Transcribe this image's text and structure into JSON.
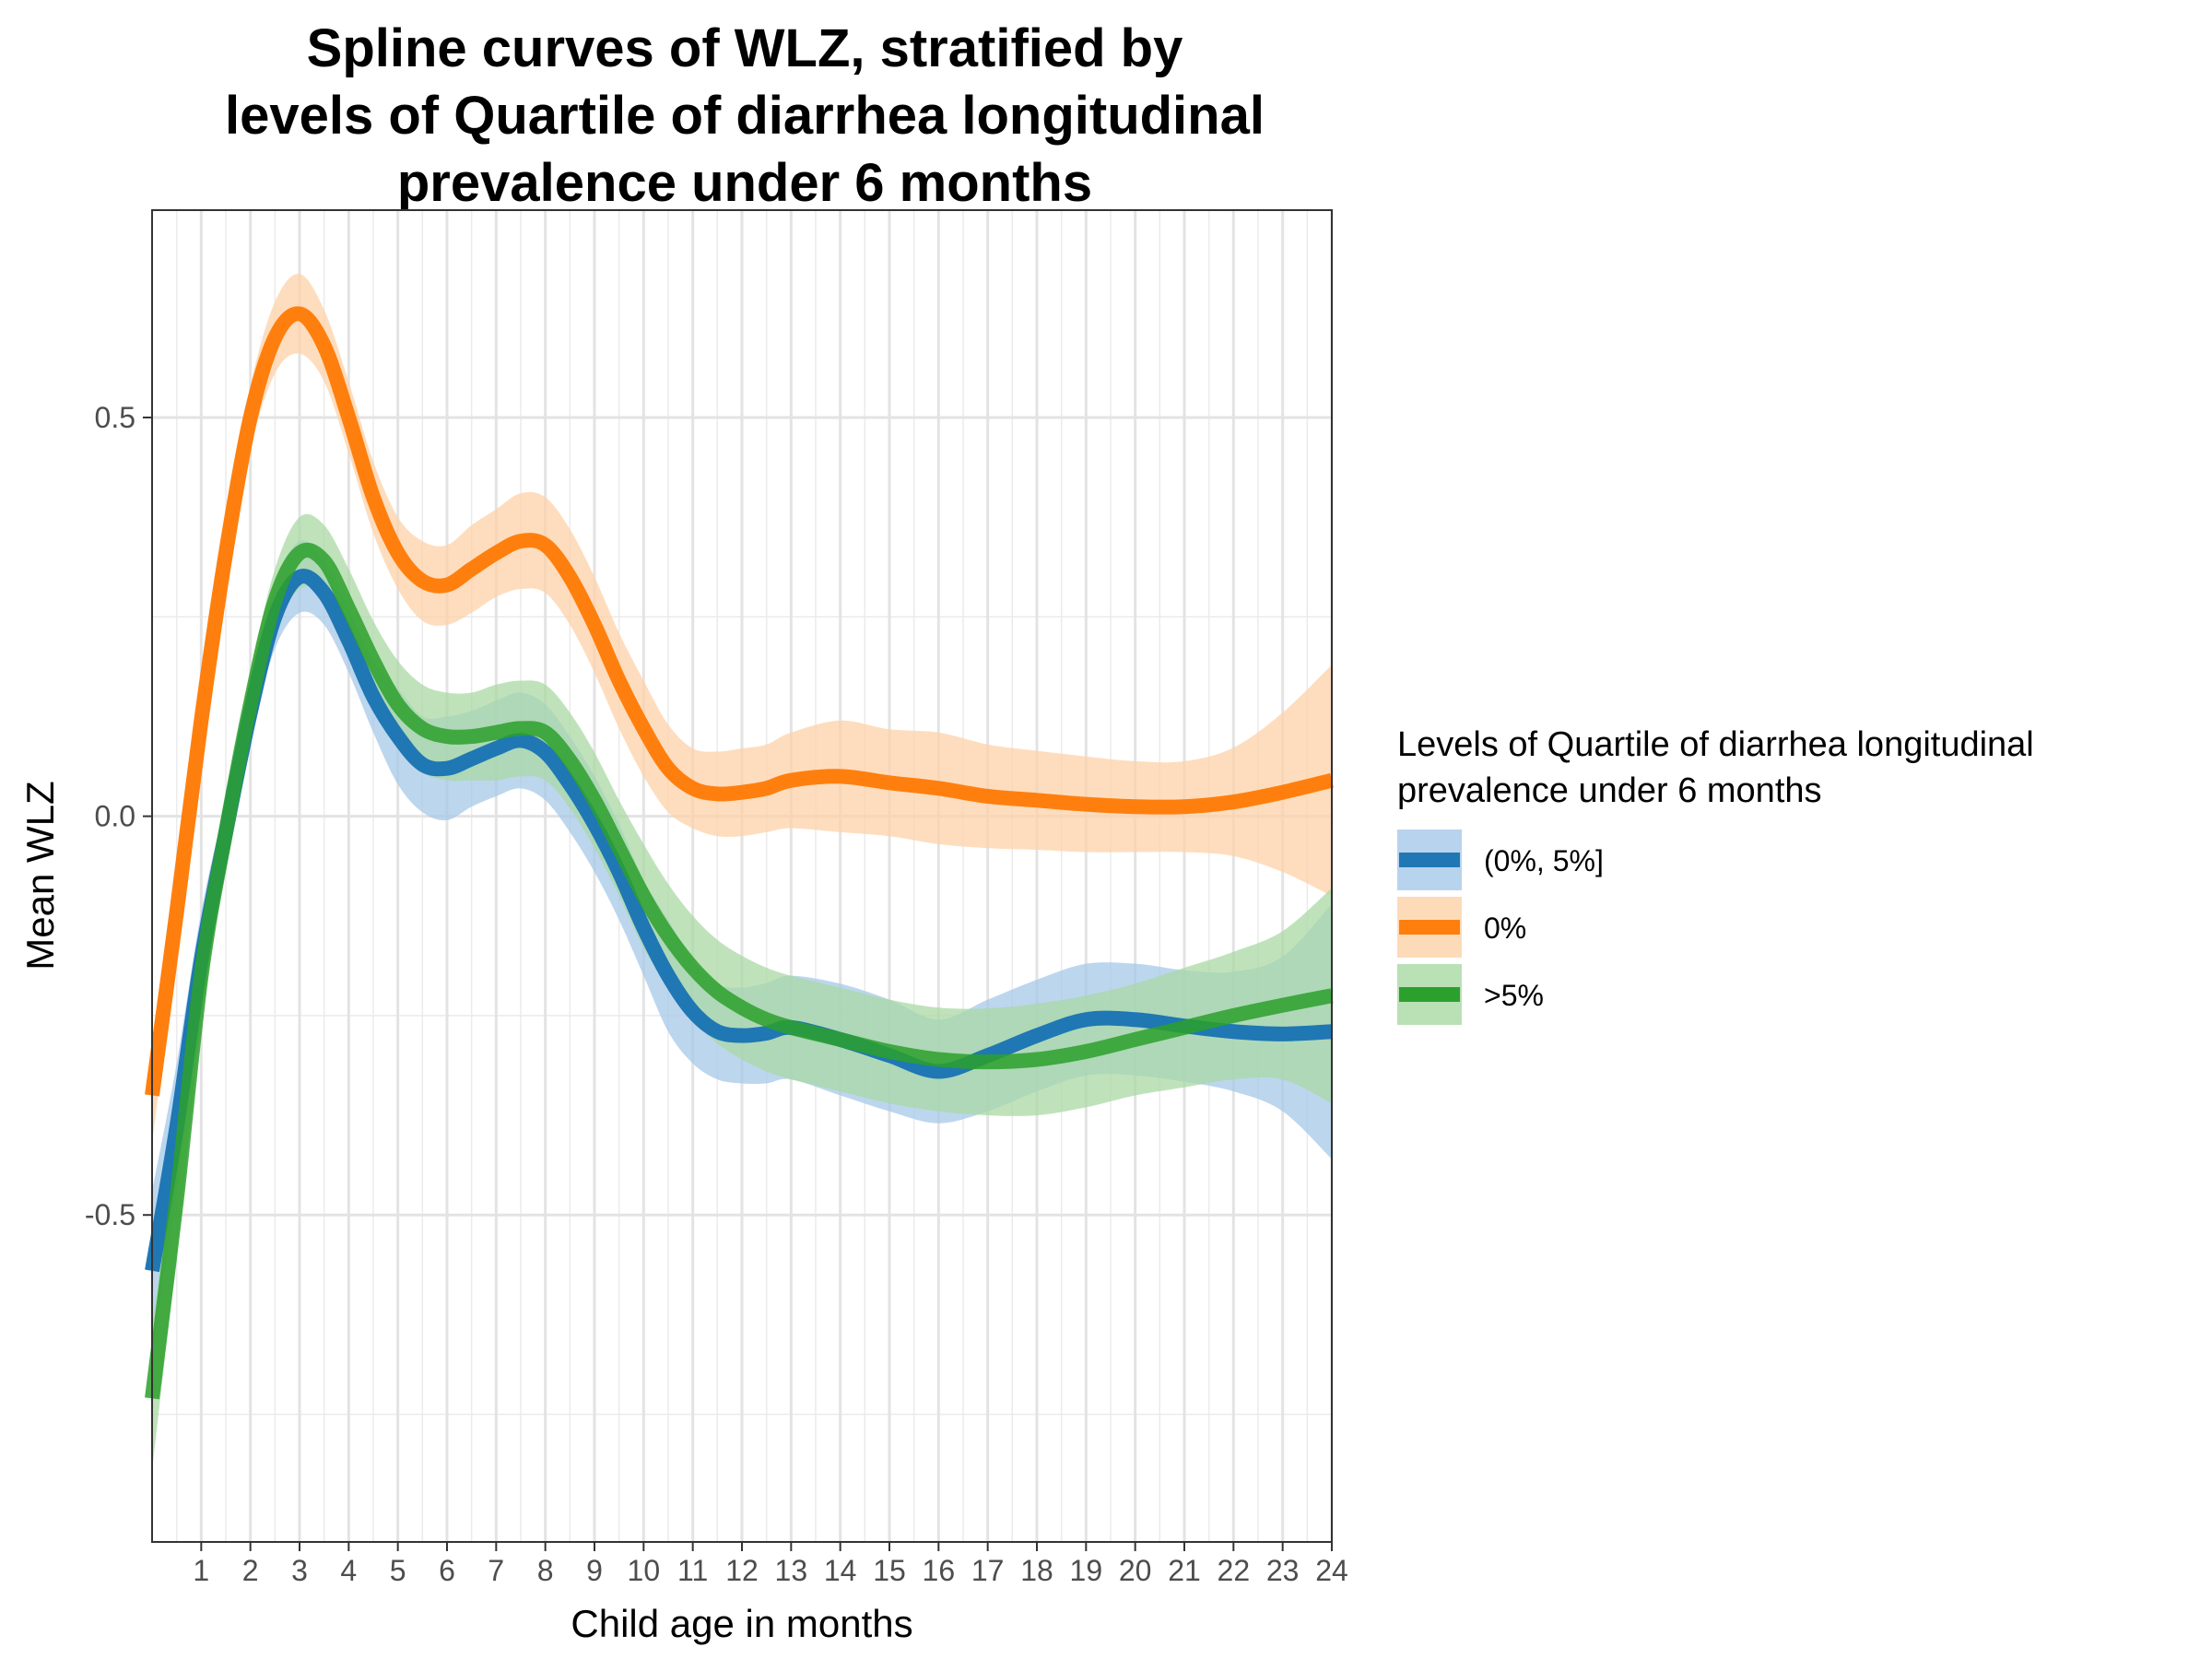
{
  "chart_data": {
    "type": "line",
    "title": [
      "Spline curves of WLZ, stratified by",
      "levels of Quartile of diarrhea longitudinal",
      "prevalence under 6 months"
    ],
    "xlabel": "Child age in months",
    "ylabel": "Mean WLZ",
    "xlim": [
      0,
      24
    ],
    "ylim": [
      -0.91,
      0.76
    ],
    "x_ticks": [
      1,
      2,
      3,
      4,
      5,
      6,
      7,
      8,
      9,
      10,
      11,
      12,
      13,
      14,
      15,
      16,
      17,
      18,
      19,
      20,
      21,
      22,
      23,
      24
    ],
    "y_ticks": [
      -0.5,
      0.0,
      0.5
    ],
    "y_tick_labels": [
      "-0.5",
      "0.0",
      "0.5"
    ],
    "grid": true,
    "legend": {
      "title": [
        "Levels of Quartile of diarrhea longitudinal",
        "prevalence under 6 months"
      ],
      "position": "right"
    },
    "series": [
      {
        "name": "(0%, 5%]",
        "color": "#1f77b4",
        "band_color": "#a6c8e8",
        "x": [
          0,
          0.5,
          1,
          1.5,
          2,
          2.5,
          3,
          3.5,
          4,
          4.5,
          5,
          5.5,
          6,
          6.5,
          7,
          7.5,
          8,
          8.5,
          9,
          9.5,
          10,
          10.5,
          11,
          11.5,
          12,
          12.5,
          13,
          14,
          15,
          16,
          17,
          18,
          19,
          20,
          21,
          22,
          23,
          24
        ],
        "y": [
          -0.57,
          -0.39,
          -0.18,
          -0.02,
          0.13,
          0.25,
          0.3,
          0.28,
          0.22,
          0.15,
          0.1,
          0.065,
          0.06,
          0.072,
          0.085,
          0.095,
          0.08,
          0.04,
          -0.01,
          -0.07,
          -0.14,
          -0.2,
          -0.245,
          -0.27,
          -0.275,
          -0.272,
          -0.265,
          -0.28,
          -0.3,
          -0.32,
          -0.3,
          -0.275,
          -0.255,
          -0.255,
          -0.263,
          -0.27,
          -0.273,
          -0.27
        ],
        "lower": [
          -0.67,
          -0.47,
          -0.24,
          -0.06,
          0.1,
          0.21,
          0.255,
          0.24,
          0.18,
          0.105,
          0.04,
          0.005,
          -0.005,
          0.012,
          0.025,
          0.035,
          0.02,
          -0.02,
          -0.07,
          -0.13,
          -0.2,
          -0.27,
          -0.31,
          -0.33,
          -0.335,
          -0.335,
          -0.33,
          -0.35,
          -0.37,
          -0.385,
          -0.37,
          -0.345,
          -0.325,
          -0.325,
          -0.333,
          -0.345,
          -0.37,
          -0.43
        ],
        "upper": [
          -0.47,
          -0.31,
          -0.12,
          0.02,
          0.16,
          0.29,
          0.345,
          0.32,
          0.26,
          0.195,
          0.16,
          0.125,
          0.125,
          0.132,
          0.145,
          0.155,
          0.14,
          0.1,
          0.05,
          -0.01,
          -0.08,
          -0.13,
          -0.18,
          -0.21,
          -0.215,
          -0.209,
          -0.2,
          -0.21,
          -0.23,
          -0.255,
          -0.23,
          -0.205,
          -0.185,
          -0.185,
          -0.193,
          -0.195,
          -0.176,
          -0.11
        ]
      },
      {
        "name": "0%",
        "color": "#ff7f0e",
        "band_color": "#fdd2a8",
        "x": [
          0,
          0.5,
          1,
          1.5,
          2,
          2.5,
          3,
          3.5,
          4,
          4.5,
          5,
          5.5,
          6,
          6.5,
          7,
          7.5,
          8,
          8.5,
          9,
          9.5,
          10,
          10.5,
          11,
          11.5,
          12,
          12.5,
          13,
          14,
          15,
          16,
          17,
          18,
          19,
          20,
          21,
          22,
          23,
          24
        ],
        "y": [
          -0.35,
          -0.12,
          0.12,
          0.33,
          0.5,
          0.6,
          0.63,
          0.59,
          0.5,
          0.4,
          0.33,
          0.295,
          0.29,
          0.31,
          0.33,
          0.345,
          0.34,
          0.3,
          0.24,
          0.17,
          0.11,
          0.06,
          0.035,
          0.028,
          0.03,
          0.035,
          0.045,
          0.05,
          0.042,
          0.035,
          0.025,
          0.02,
          0.015,
          0.012,
          0.012,
          0.018,
          0.03,
          0.045
        ],
        "lower": [
          -0.41,
          -0.17,
          0.07,
          0.29,
          0.46,
          0.555,
          0.58,
          0.545,
          0.455,
          0.355,
          0.285,
          0.245,
          0.24,
          0.255,
          0.275,
          0.285,
          0.28,
          0.24,
          0.18,
          0.11,
          0.05,
          0.005,
          -0.015,
          -0.025,
          -0.025,
          -0.02,
          -0.015,
          -0.02,
          -0.025,
          -0.035,
          -0.04,
          -0.042,
          -0.045,
          -0.045,
          -0.045,
          -0.05,
          -0.07,
          -0.1
        ],
        "upper": [
          -0.29,
          -0.07,
          0.17,
          0.37,
          0.54,
          0.645,
          0.68,
          0.635,
          0.545,
          0.445,
          0.375,
          0.345,
          0.34,
          0.365,
          0.385,
          0.405,
          0.4,
          0.36,
          0.3,
          0.23,
          0.17,
          0.115,
          0.085,
          0.081,
          0.085,
          0.09,
          0.105,
          0.12,
          0.109,
          0.105,
          0.09,
          0.082,
          0.075,
          0.069,
          0.069,
          0.086,
          0.13,
          0.19
        ]
      },
      {
        "name": ">5%",
        "color": "#2ca02c",
        "band_color": "#a9d8a4",
        "x": [
          0,
          0.5,
          1,
          1.5,
          2,
          2.5,
          3,
          3.5,
          4,
          4.5,
          5,
          5.5,
          6,
          6.5,
          7,
          7.5,
          8,
          8.5,
          9,
          9.5,
          10,
          10.5,
          11,
          11.5,
          12,
          12.5,
          13,
          14,
          15,
          16,
          17,
          18,
          19,
          20,
          21,
          22,
          23,
          24
        ],
        "y": [
          -0.73,
          -0.48,
          -0.2,
          -0.02,
          0.14,
          0.27,
          0.33,
          0.32,
          0.26,
          0.195,
          0.14,
          0.11,
          0.1,
          0.1,
          0.105,
          0.11,
          0.105,
          0.07,
          0.02,
          -0.04,
          -0.1,
          -0.15,
          -0.19,
          -0.22,
          -0.24,
          -0.255,
          -0.265,
          -0.28,
          -0.295,
          -0.305,
          -0.308,
          -0.305,
          -0.295,
          -0.28,
          -0.265,
          -0.25,
          -0.237,
          -0.225
        ],
        "lower": [
          -0.82,
          -0.55,
          -0.26,
          -0.06,
          0.1,
          0.23,
          0.285,
          0.275,
          0.21,
          0.145,
          0.085,
          0.055,
          0.045,
          0.045,
          0.045,
          0.05,
          0.045,
          0.01,
          -0.04,
          -0.1,
          -0.165,
          -0.215,
          -0.255,
          -0.285,
          -0.305,
          -0.32,
          -0.33,
          -0.345,
          -0.36,
          -0.37,
          -0.375,
          -0.375,
          -0.365,
          -0.35,
          -0.34,
          -0.33,
          -0.33,
          -0.36
        ],
        "upper": [
          -0.64,
          -0.41,
          -0.14,
          0.02,
          0.18,
          0.31,
          0.375,
          0.365,
          0.31,
          0.245,
          0.195,
          0.165,
          0.155,
          0.155,
          0.165,
          0.17,
          0.165,
          0.13,
          0.08,
          0.02,
          -0.035,
          -0.085,
          -0.125,
          -0.155,
          -0.175,
          -0.19,
          -0.2,
          -0.215,
          -0.23,
          -0.24,
          -0.241,
          -0.235,
          -0.225,
          -0.21,
          -0.19,
          -0.17,
          -0.144,
          -0.09
        ]
      }
    ],
    "legend_order": [
      "(0%, 5%]",
      "0%",
      ">5%"
    ]
  }
}
